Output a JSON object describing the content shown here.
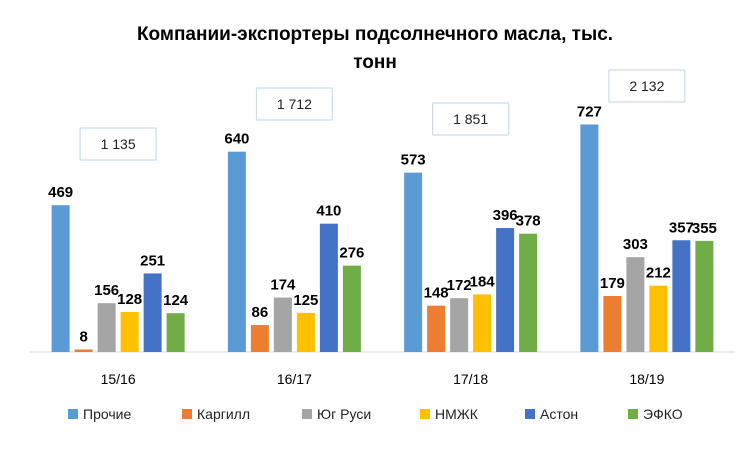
{
  "chart_data": {
    "type": "bar",
    "title_lines": [
      "Компании-экспортеры подсолнечного масла, тыс.",
      "тонн"
    ],
    "categories": [
      "15/16",
      "16/17",
      "17/18",
      "18/19"
    ],
    "series": [
      {
        "name": "Прочие",
        "color": "#5b9bd5",
        "values": [
          469,
          640,
          573,
          727
        ]
      },
      {
        "name": "Каргилл",
        "color": "#ed7d31",
        "values": [
          8,
          86,
          148,
          179
        ]
      },
      {
        "name": "Юг Руси",
        "color": "#a5a5a5",
        "values": [
          156,
          174,
          172,
          303
        ]
      },
      {
        "name": "НМЖК",
        "color": "#ffc000",
        "values": [
          128,
          125,
          184,
          212
        ]
      },
      {
        "name": "Астон",
        "color": "#4472c4",
        "values": [
          251,
          410,
          396,
          357
        ]
      },
      {
        "name": "ЭФКО",
        "color": "#70ad47",
        "values": [
          124,
          276,
          378,
          355
        ]
      }
    ],
    "totals": [
      "1 135",
      "1 712",
      "1 851",
      "2 132"
    ],
    "ylim": [
      0,
      800
    ],
    "grid": false,
    "legend_position": "bottom"
  }
}
